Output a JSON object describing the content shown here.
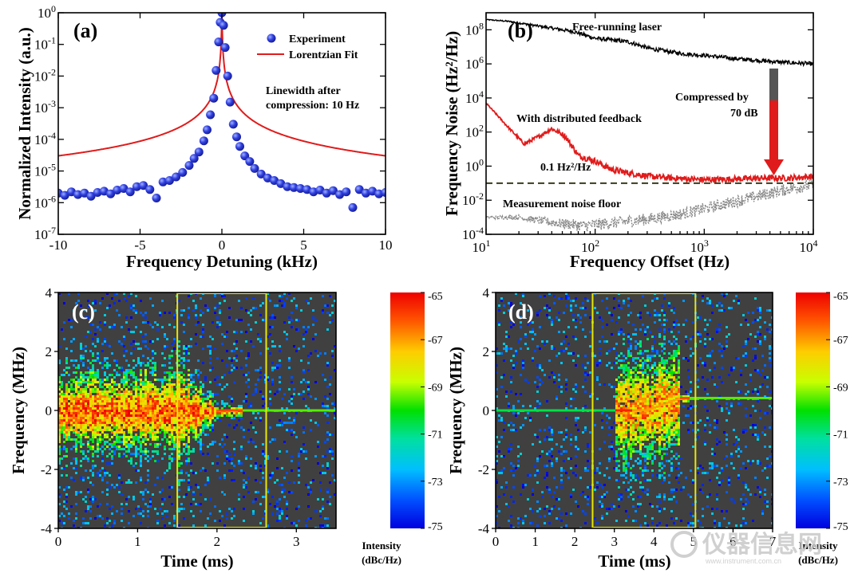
{
  "chart_data": [
    {
      "panel": "(a)",
      "type": "scatter",
      "xlabel": "Frequency Detuning (kHz)",
      "ylabel": "Normalized Intensity (a.u.)",
      "xlim": [
        -10,
        10
      ],
      "ylim_log10": [
        -7,
        0
      ],
      "yscale": "log",
      "xticks": [
        "-10",
        "-5",
        "0",
        "5",
        "10"
      ],
      "yticks_exp": [
        "0",
        "-1",
        "-2",
        "-3",
        "-4",
        "-5",
        "-6",
        "-7"
      ],
      "legend": [
        "Experiment",
        "Lorentzian Fit"
      ],
      "legend_position": "top-right",
      "annotation": [
        "Linewidth after",
        "compression: 10 Hz"
      ],
      "series": [
        {
          "name": "Experiment",
          "style": "markers",
          "color": "#1f2fd6",
          "x": [
            -10.0,
            -9.6,
            -9.2,
            -8.8,
            -8.4,
            -8.0,
            -7.6,
            -7.2,
            -6.8,
            -6.4,
            -6.0,
            -5.6,
            -5.2,
            -4.8,
            -4.4,
            -4.0,
            -3.6,
            -3.2,
            -2.8,
            -2.4,
            -2.0,
            -1.7,
            -1.4,
            -1.1,
            -0.9,
            -0.7,
            -0.5,
            -0.35,
            -0.2,
            -0.1,
            0.0,
            0.1,
            0.2,
            0.35,
            0.5,
            0.7,
            0.9,
            1.1,
            1.4,
            1.7,
            2.0,
            2.4,
            2.8,
            3.2,
            3.6,
            4.0,
            4.4,
            4.8,
            5.2,
            5.6,
            6.0,
            6.4,
            6.8,
            7.2,
            7.6,
            8.0,
            8.4,
            8.8,
            9.2,
            9.6,
            10.0
          ],
          "y": [
            2e-06,
            1.7e-06,
            2.2e-06,
            1.8e-06,
            2e-06,
            1.6e-06,
            2.1e-06,
            2.3e-06,
            1.9e-06,
            2.5e-06,
            2.8e-06,
            2.2e-06,
            3.2e-06,
            3.5e-06,
            2.6e-06,
            1.4e-06,
            4.5e-06,
            5e-06,
            6.5e-06,
            9e-06,
            1.5e-05,
            2.5e-05,
            4e-05,
            9e-05,
            0.0002,
            0.0006,
            0.002,
            0.015,
            0.12,
            0.5,
            1.0,
            0.4,
            0.08,
            0.01,
            0.0015,
            0.0003,
            0.00012,
            6e-05,
            3e-05,
            2e-05,
            1.2e-05,
            8e-06,
            6e-06,
            5e-06,
            4e-06,
            3.2e-06,
            3e-06,
            2.8e-06,
            2.6e-06,
            2.2e-06,
            2.5e-06,
            2e-06,
            2.4e-06,
            1.8e-06,
            2.2e-06,
            7e-07,
            2.6e-06,
            2e-06,
            2.3e-06,
            1.9e-06,
            2.1e-06
          ]
        },
        {
          "name": "Lorentzian Fit",
          "style": "line",
          "color": "#e01b1b",
          "gamma_khz": 0.01,
          "baseline": 6e-07
        }
      ]
    },
    {
      "panel": "(b)",
      "type": "line",
      "xlabel": "Frequency Offset (Hz)",
      "ylabel": "Frequency Noise (Hz²/Hz)",
      "xscale": "log",
      "yscale": "log",
      "xlim_log10": [
        1,
        4
      ],
      "ylim_log10": [
        -4,
        9
      ],
      "xticks_exp": [
        "1",
        "2",
        "3",
        "4"
      ],
      "yticks_exp": [
        "8",
        "6",
        "4",
        "2",
        "0",
        "-2",
        "-4"
      ],
      "annotations": {
        "free_running": "Free-running laser",
        "compressed_line1": "Compressed by",
        "compressed_line2": "70 dB",
        "dfb": "With distributed feedback",
        "floor_value": "0.1 Hz²/Hz",
        "noise_floor": "Measurement noise floor"
      },
      "series": [
        {
          "name": "Free-running laser",
          "color": "#000000",
          "x_log10": [
            1.0,
            1.2,
            1.5,
            1.8,
            2.0,
            2.3,
            2.5,
            2.8,
            3.0,
            3.3,
            3.5,
            3.7,
            4.0
          ],
          "y_log10": [
            8.6,
            8.5,
            8.2,
            7.9,
            7.5,
            7.3,
            6.9,
            6.6,
            6.5,
            6.3,
            6.2,
            6.1,
            6.0
          ]
        },
        {
          "name": "With distributed feedback",
          "color": "#e01b1b",
          "x_log10": [
            1.0,
            1.2,
            1.35,
            1.5,
            1.6,
            1.72,
            1.85,
            2.0,
            2.15,
            2.3,
            2.5,
            2.7,
            3.0,
            3.3,
            3.6,
            3.8,
            4.0
          ],
          "y_log10": [
            3.7,
            2.3,
            1.3,
            1.8,
            2.2,
            1.8,
            0.6,
            0.3,
            -0.2,
            -0.4,
            -0.6,
            -0.7,
            -0.8,
            -0.75,
            -0.7,
            -0.7,
            -0.6
          ]
        },
        {
          "name": "Measurement noise floor",
          "color": "#888888",
          "x_log10": [
            1.0,
            1.3,
            1.6,
            1.9,
            2.2,
            2.5,
            2.8,
            3.0,
            3.2,
            3.4,
            3.6,
            3.8,
            4.0
          ],
          "y_log10": [
            -3.0,
            -3.0,
            -3.3,
            -3.5,
            -3.3,
            -3.1,
            -2.8,
            -2.5,
            -2.2,
            -1.9,
            -1.6,
            -1.3,
            -1.1
          ]
        },
        {
          "name": "0.1 Hz²/Hz",
          "color": "#3b3b1e",
          "style": "dashed",
          "y_log10": -1
        }
      ]
    },
    {
      "panel": "(c)",
      "type": "heatmap",
      "xlabel": "Time (ms)",
      "ylabel": "Frequency (MHz)",
      "xlim": [
        0,
        3.5
      ],
      "ylim": [
        -4,
        4
      ],
      "xticks": [
        "0",
        "1",
        "2",
        "3"
      ],
      "yticks": [
        "4",
        "2",
        "0",
        "-2",
        "-4"
      ],
      "highlight_box_ms": [
        1.5,
        2.62
      ],
      "colorbar": {
        "label1": "Intensity",
        "label2": "(dBc/Hz)",
        "ticks": [
          "-65",
          "-67",
          "-69",
          "-71",
          "-73",
          "-75"
        ],
        "range": [
          -75,
          -65
        ]
      }
    },
    {
      "panel": "(d)",
      "type": "heatmap",
      "xlabel": "Time (ms)",
      "ylabel": "Frequency (MHz)",
      "xlim": [
        0,
        7
      ],
      "ylim": [
        -4,
        4
      ],
      "xticks": [
        "0",
        "1",
        "2",
        "3",
        "4",
        "5",
        "6",
        "7"
      ],
      "yticks": [
        "4",
        "2",
        "0",
        "-2",
        "-4"
      ],
      "highlight_box_ms": [
        2.45,
        5.05
      ],
      "colorbar": {
        "label1": "Intensity",
        "label2": "(dBc/Hz)",
        "ticks": [
          "-65",
          "-67",
          "-69",
          "-71",
          "-73",
          "-75"
        ],
        "range": [
          -75,
          -65
        ]
      }
    }
  ],
  "watermark": {
    "text": "仪器信息网",
    "sub": "www.instrument.com.cn"
  }
}
